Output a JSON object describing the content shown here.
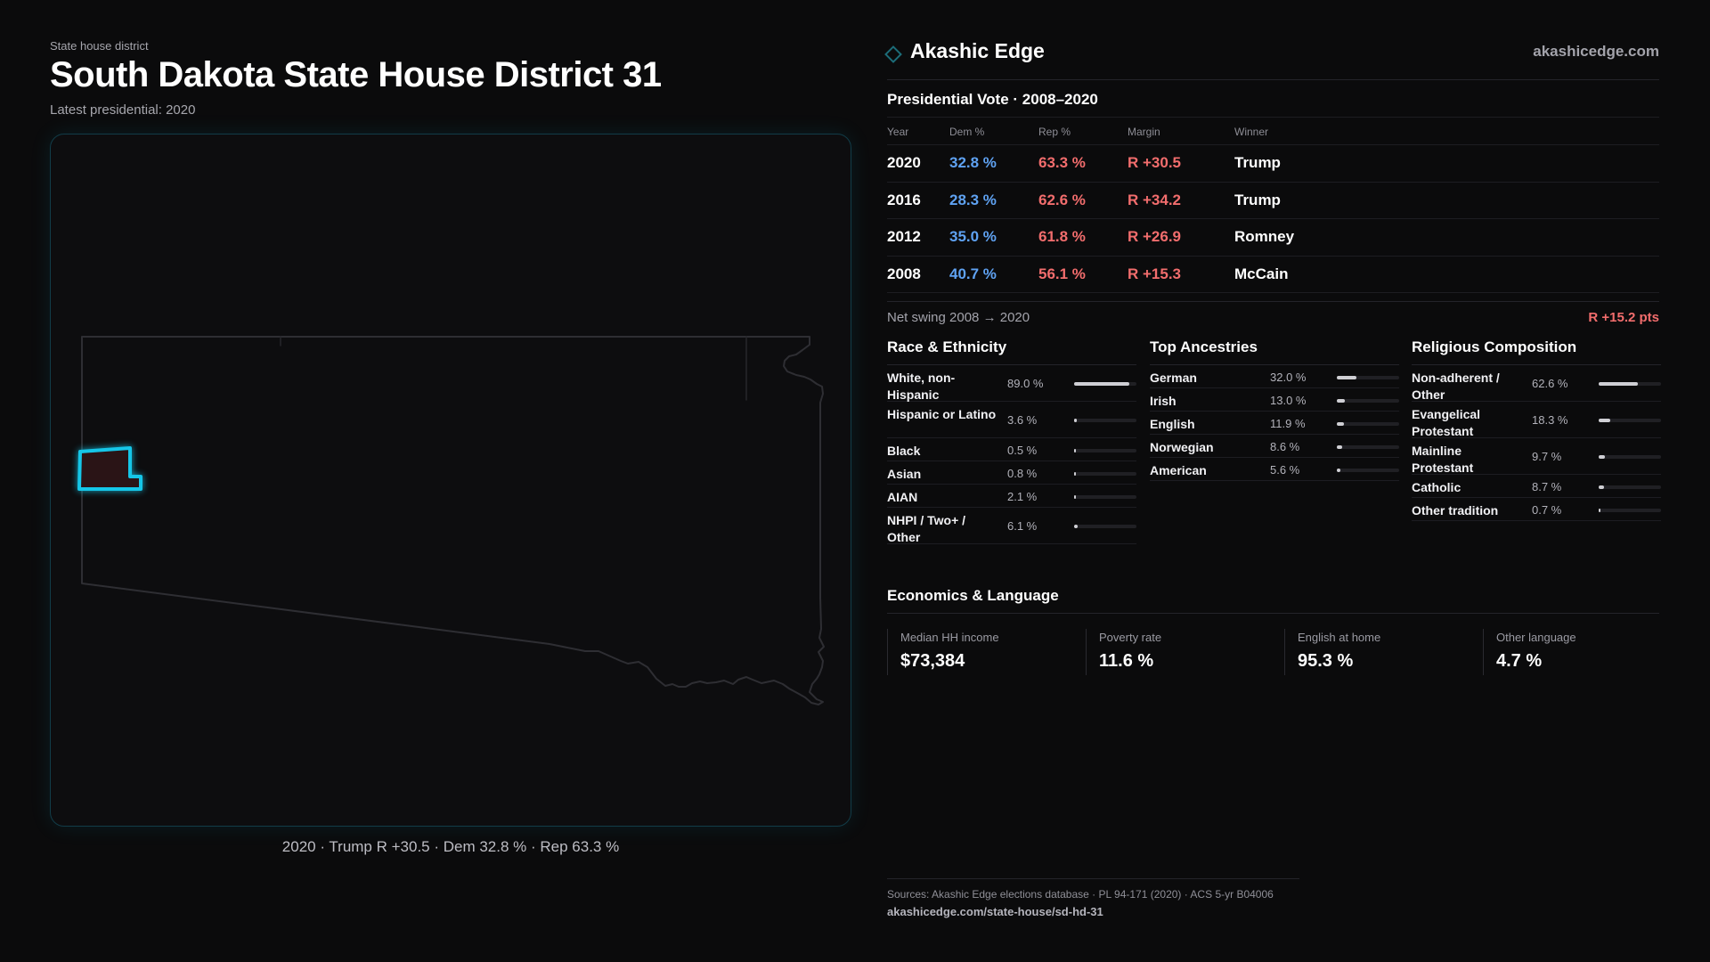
{
  "header": {
    "kicker": "State house district",
    "title": "South Dakota State House District 31",
    "subtitle": "Latest presidential: 2020"
  },
  "map": {
    "caption": "2020 · Trump R +30.5 · Dem 32.8 % · Rep 63.3 %",
    "highlight_color": "#15c6e8",
    "highlight_fill": "#2a1416",
    "outline_color": "#2e2e33"
  },
  "brand": {
    "name": "Akashic Edge",
    "url": "akashicedge.com"
  },
  "presidential": {
    "title": "Presidential Vote · 2008–2020",
    "columns": {
      "year": "Year",
      "dem": "Dem %",
      "rep": "Rep %",
      "margin": "Margin",
      "winner": "Winner"
    },
    "rows": [
      {
        "year": "2020",
        "dem": "32.8 %",
        "rep": "63.3 %",
        "margin": "R +30.5",
        "winner": "Trump"
      },
      {
        "year": "2016",
        "dem": "28.3 %",
        "rep": "62.6 %",
        "margin": "R +34.2",
        "winner": "Trump"
      },
      {
        "year": "2012",
        "dem": "35.0 %",
        "rep": "61.8 %",
        "margin": "R +26.9",
        "winner": "Romney"
      },
      {
        "year": "2008",
        "dem": "40.7 %",
        "rep": "56.1 %",
        "margin": "R +15.3",
        "winner": "McCain"
      }
    ],
    "swing_label": "Net swing 2008 → 2020",
    "swing_value": "R +15.2 pts",
    "dem_color": "#5fa2f2",
    "rep_color": "#f26d6d"
  },
  "race": {
    "title": "Race & Ethnicity",
    "items": [
      {
        "label": "White, non-Hispanic",
        "pct": "89.0 %",
        "share": 0.89
      },
      {
        "label": "Hispanic or Latino",
        "pct": "3.6 %",
        "share": 0.036
      },
      {
        "label": "Black",
        "pct": "0.5 %",
        "share": 0.005
      },
      {
        "label": "Asian",
        "pct": "0.8 %",
        "share": 0.008
      },
      {
        "label": "AIAN",
        "pct": "2.1 %",
        "share": 0.021
      },
      {
        "label": "NHPI / Two+ / Other",
        "pct": "6.1 %",
        "share": 0.061
      }
    ]
  },
  "ancestry": {
    "title": "Top Ancestries",
    "items": [
      {
        "label": "German",
        "pct": "32.0 %",
        "share": 0.32
      },
      {
        "label": "Irish",
        "pct": "13.0 %",
        "share": 0.13
      },
      {
        "label": "English",
        "pct": "11.9 %",
        "share": 0.119
      },
      {
        "label": "Norwegian",
        "pct": "8.6 %",
        "share": 0.086
      },
      {
        "label": "American",
        "pct": "5.6 %",
        "share": 0.056
      }
    ]
  },
  "religion": {
    "title": "Religious Composition",
    "items": [
      {
        "label": "Non-adherent / Other",
        "pct": "62.6 %",
        "share": 0.626
      },
      {
        "label": "Evangelical Protestant",
        "pct": "18.3 %",
        "share": 0.183
      },
      {
        "label": "Mainline Protestant",
        "pct": "9.7 %",
        "share": 0.097
      },
      {
        "label": "Catholic",
        "pct": "8.7 %",
        "share": 0.087
      },
      {
        "label": "Other tradition",
        "pct": "0.7 %",
        "share": 0.007
      }
    ]
  },
  "economics": {
    "title": "Economics & Language",
    "cards": [
      {
        "label": "Median HH income",
        "value": "$73,384"
      },
      {
        "label": "Poverty rate",
        "value": "11.6 %"
      },
      {
        "label": "English at home",
        "value": "95.3 %"
      },
      {
        "label": "Other language",
        "value": "4.7 %"
      }
    ]
  },
  "footer": {
    "sources": "Sources: Akashic Edge elections database · PL 94-171 (2020) · ACS 5-yr B04006",
    "url": "akashicedge.com/state-house/sd-hd-31"
  }
}
